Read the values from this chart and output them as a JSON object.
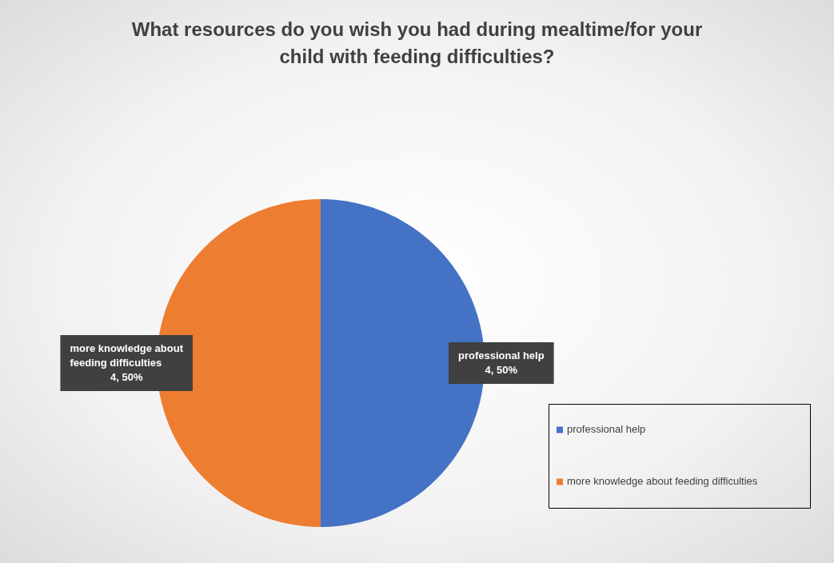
{
  "chart_data": {
    "type": "pie",
    "title": "What resources do you wish you had during mealtime/for your child with feeding difficulties?",
    "categories": [
      "professional help",
      "more knowledge about feeding difficulties"
    ],
    "values": [
      4,
      4
    ],
    "colors": [
      "#4472c4",
      "#ed7d31"
    ],
    "value_labels": [
      "4, 50%",
      "4, 50%"
    ],
    "legend": "right"
  }
}
